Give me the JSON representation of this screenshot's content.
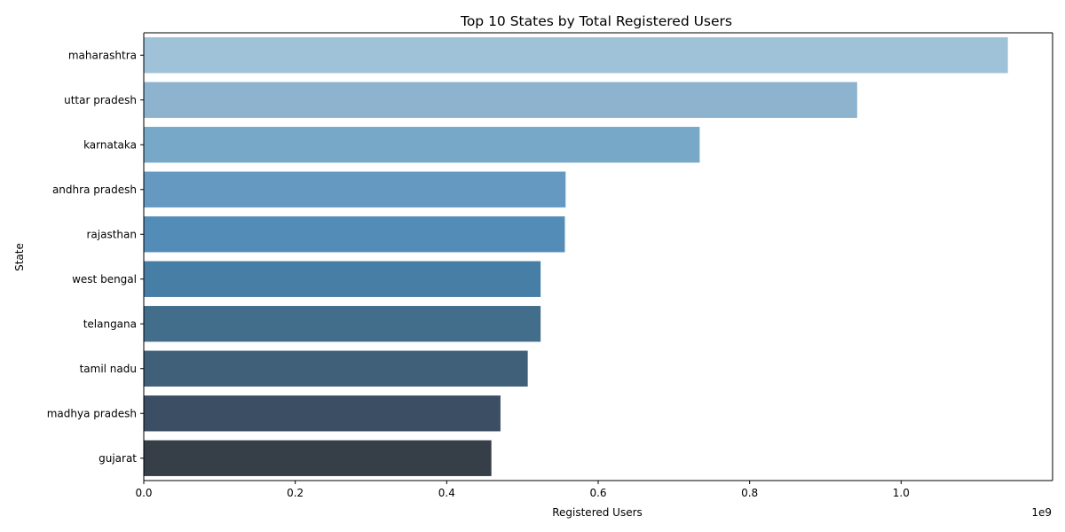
{
  "chart_data": {
    "type": "bar",
    "orientation": "horizontal",
    "title": "Top 10 States by Total Registered Users",
    "xlabel": "Registered Users",
    "ylabel": "State",
    "x_offset_label": "1e9",
    "xlim": [
      0,
      1.2
    ],
    "x_ticks": [
      0.0,
      0.2,
      0.4,
      0.6,
      0.8,
      1.0
    ],
    "x_tick_labels": [
      "0.0",
      "0.2",
      "0.4",
      "0.6",
      "0.8",
      "1.0"
    ],
    "grid": false,
    "categories": [
      "maharashtra",
      "uttar pradesh",
      "karnataka",
      "andhra pradesh",
      "rajasthan",
      "west bengal",
      "telangana",
      "tamil nadu",
      "madhya pradesh",
      "gujarat"
    ],
    "values": [
      1.141,
      0.942,
      0.734,
      0.557,
      0.556,
      0.524,
      0.524,
      0.507,
      0.471,
      0.459
    ],
    "colors": [
      "#9fc2d8",
      "#8db3cf",
      "#78a8c7",
      "#6699c2",
      "#548cb8",
      "#477ea6",
      "#426e8b",
      "#405f78",
      "#3b4e63",
      "#363f47"
    ]
  }
}
